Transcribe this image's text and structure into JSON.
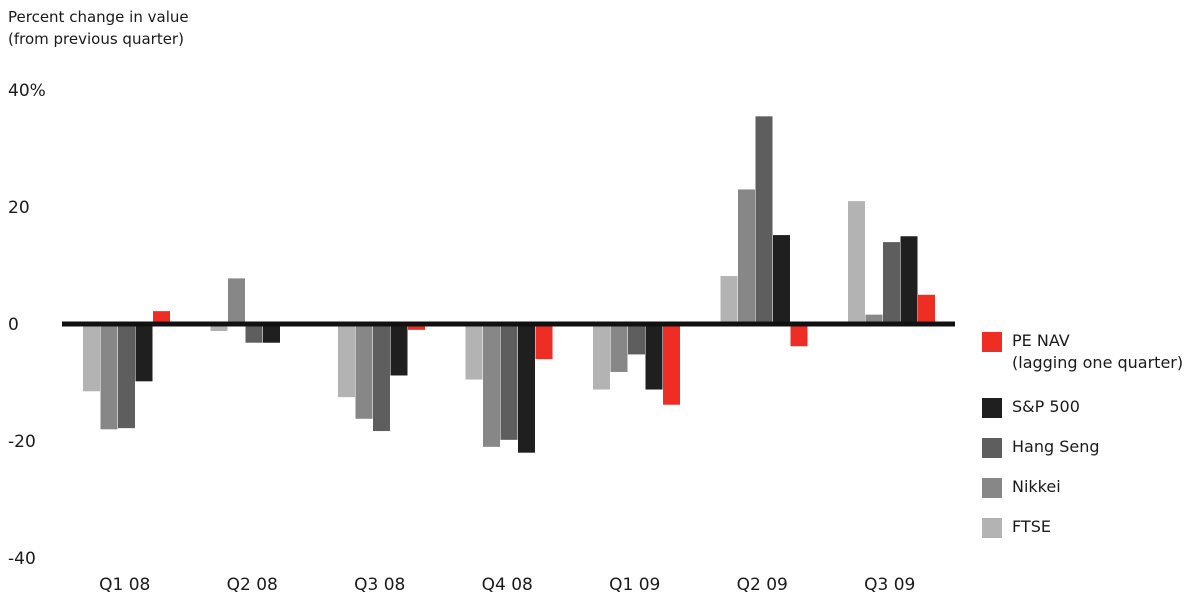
{
  "chart_data": {
    "type": "bar",
    "ylabel_lines": [
      "Percent change in value",
      "(from previous quarter)"
    ],
    "categories": [
      "Q1 08",
      "Q2 08",
      "Q3 08",
      "Q4 08",
      "Q1 09",
      "Q2 09",
      "Q3 09"
    ],
    "ylim": [
      -40,
      40
    ],
    "yticks": [
      40,
      20,
      0,
      -20,
      -40
    ],
    "ytick_labels": [
      "40%",
      "20",
      "0",
      "-20",
      "-40"
    ],
    "grid": false,
    "legend_position": "right",
    "series": [
      {
        "name": "FTSE",
        "color": "#b3b3b3",
        "values": [
          -11.5,
          -1.2,
          -12.5,
          -9.5,
          -11.2,
          8.2,
          21.0
        ]
      },
      {
        "name": "Nikkei",
        "color": "#878787",
        "values": [
          -18.0,
          7.8,
          -16.2,
          -21.0,
          -8.2,
          23.0,
          1.6
        ]
      },
      {
        "name": "Hang Seng",
        "color": "#5e5e5e",
        "values": [
          -17.8,
          -3.2,
          -18.3,
          -19.8,
          -5.2,
          35.5,
          14.0
        ]
      },
      {
        "name": "S&P 500",
        "color": "#1f1f1f",
        "values": [
          -9.8,
          -3.2,
          -8.8,
          -22.0,
          -11.2,
          15.2,
          15.0
        ]
      },
      {
        "name": "PE NAV",
        "name_line2": "(lagging one quarter)",
        "color": "#ee2e24",
        "values": [
          2.2,
          0,
          -1.0,
          -6.0,
          -13.8,
          -3.8,
          5.0
        ]
      }
    ]
  },
  "legend_order": [
    "PE NAV",
    "S&P 500",
    "Hang Seng",
    "Nikkei",
    "FTSE"
  ]
}
